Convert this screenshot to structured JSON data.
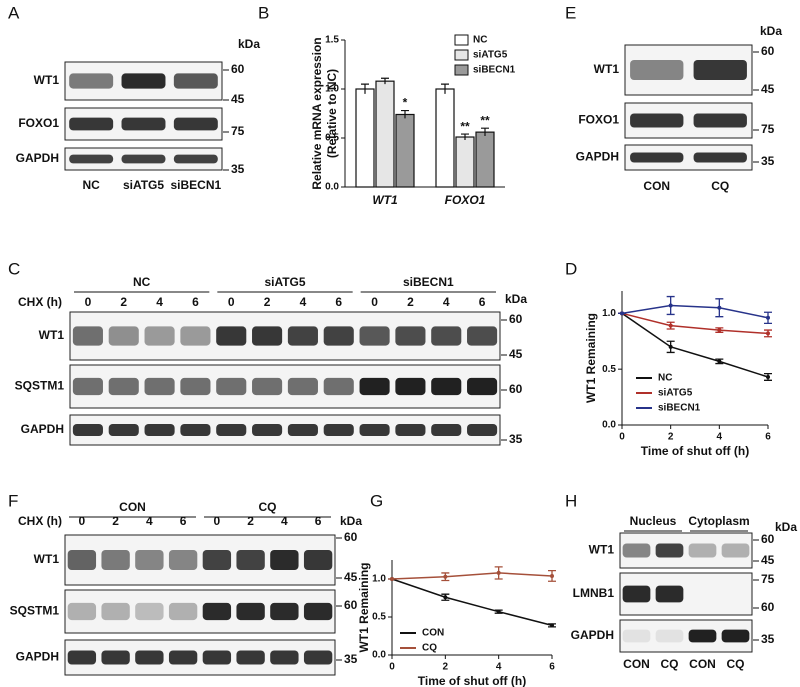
{
  "chart_data": [
    {
      "type": "bar",
      "letter": "B",
      "y_label": [
        "Relative mRNA expression",
        "(Relative to NC)"
      ],
      "categories": [
        "WT1",
        "FOXO1"
      ],
      "series": [
        {
          "name": "NC",
          "color": "#ffffff",
          "values": [
            1.0,
            1.0
          ],
          "errors": [
            0.05,
            0.05
          ]
        },
        {
          "name": "siATG5",
          "color": "#e6e6e6",
          "values": [
            1.08,
            0.51
          ],
          "errors": [
            0.03,
            0.03
          ]
        },
        {
          "name": "siBECN1",
          "color": "#9a9a9a",
          "values": [
            0.74,
            0.56
          ],
          "errors": [
            0.04,
            0.04
          ]
        }
      ],
      "annotations": [
        "*",
        "**",
        "**"
      ],
      "ylim": [
        0,
        1.5
      ],
      "yticks": [
        {
          "value": 0,
          "label": "0.0"
        },
        {
          "value": 0.5,
          "label": "0.5"
        },
        {
          "value": 1,
          "label": "1.0"
        },
        {
          "value": 1.5,
          "label": "1.5"
        }
      ]
    },
    {
      "type": "line",
      "letter": "D",
      "y_label": "WT1 Remaining",
      "x_label": "Time of shut off (h)",
      "x": [
        0,
        2,
        4,
        6
      ],
      "series": [
        {
          "name": "NC",
          "color": "#111111",
          "values": [
            1.0,
            0.7,
            0.57,
            0.43
          ],
          "errors": [
            0,
            0.05,
            0.02,
            0.03
          ]
        },
        {
          "name": "siATG5",
          "color": "#b0302a",
          "values": [
            1.0,
            0.89,
            0.85,
            0.82
          ],
          "errors": [
            0,
            0.03,
            0.02,
            0.03
          ]
        },
        {
          "name": "siBECN1",
          "color": "#27338a",
          "values": [
            1.0,
            1.07,
            1.05,
            0.96
          ],
          "errors": [
            0,
            0.08,
            0.08,
            0.05
          ]
        }
      ],
      "xlim": [
        0,
        6
      ],
      "xticks": [
        0,
        2,
        4,
        6
      ],
      "ylim": [
        0,
        1.2
      ],
      "yticks": [
        {
          "value": 0,
          "label": "0.0"
        },
        {
          "value": 0.5,
          "label": "0.5"
        },
        {
          "value": 1,
          "label": "1.0"
        }
      ]
    },
    {
      "type": "line",
      "letter": "G",
      "y_label": "WT1 Remaining",
      "x_label": "Time of shut off (h)",
      "x": [
        0,
        2,
        4,
        6
      ],
      "series": [
        {
          "name": "CON",
          "color": "#111111",
          "values": [
            1.0,
            0.76,
            0.57,
            0.39
          ],
          "errors": [
            0,
            0.04,
            0.02,
            0.02
          ]
        },
        {
          "name": "CQ",
          "color": "#a5503a",
          "values": [
            1.0,
            1.03,
            1.08,
            1.04
          ],
          "errors": [
            0,
            0.05,
            0.08,
            0.07
          ]
        }
      ],
      "xlim": [
        0,
        6
      ],
      "xticks": [
        0,
        2,
        4,
        6
      ],
      "ylim": [
        0,
        1.25
      ],
      "yticks": [
        {
          "value": 0,
          "label": "0.0"
        },
        {
          "value": 0.5,
          "label": "0.5"
        },
        {
          "value": 1,
          "label": "1.0"
        }
      ]
    }
  ],
  "blots": {
    "A": {
      "letter": "A",
      "unit": "kDa",
      "lanes": [
        "NC",
        "siATG5",
        "siBECN1"
      ],
      "rows": [
        {
          "label": "WT1",
          "markers": [
            "60",
            "45"
          ]
        },
        {
          "label": "FOXO1",
          "markers": [
            "75"
          ]
        },
        {
          "label": "GAPDH",
          "markers": [
            "35"
          ]
        }
      ]
    },
    "C": {
      "letter": "C",
      "unit": "kDa",
      "treatment": "CHX (h)",
      "groups": [
        "NC",
        "siATG5",
        "siBECN1"
      ],
      "lanes": [
        "0",
        "2",
        "4",
        "6",
        "0",
        "2",
        "4",
        "6",
        "0",
        "2",
        "4",
        "6"
      ],
      "rows": [
        {
          "label": "WT1",
          "markers": [
            "60",
            "45"
          ]
        },
        {
          "label": "SQSTM1",
          "markers": [
            "60"
          ]
        },
        {
          "label": "GAPDH",
          "markers": [
            "35"
          ]
        }
      ]
    },
    "E": {
      "letter": "E",
      "unit": "kDa",
      "lanes": [
        "CON",
        "CQ"
      ],
      "rows": [
        {
          "label": "WT1",
          "markers": [
            "60",
            "45"
          ]
        },
        {
          "label": "FOXO1",
          "markers": [
            "75"
          ]
        },
        {
          "label": "GAPDH",
          "markers": [
            "35"
          ]
        }
      ]
    },
    "F": {
      "letter": "F",
      "unit": "kDa",
      "treatment": "CHX (h)",
      "groups": [
        "CON",
        "CQ"
      ],
      "lanes": [
        "0",
        "2",
        "4",
        "6",
        "0",
        "2",
        "4",
        "6"
      ],
      "rows": [
        {
          "label": "WT1",
          "markers": [
            "60",
            "45"
          ]
        },
        {
          "label": "SQSTM1",
          "markers": [
            "60"
          ]
        },
        {
          "label": "GAPDH",
          "markers": [
            "35"
          ]
        }
      ]
    },
    "H": {
      "letter": "H",
      "unit": "kDa",
      "groups": [
        "Nucleus",
        "Cytoplasm"
      ],
      "lanes": [
        "CON",
        "CQ",
        "CON",
        "CQ"
      ],
      "rows": [
        {
          "label": "WT1",
          "markers": [
            "60",
            "45"
          ]
        },
        {
          "label": "LMNB1",
          "markers": [
            "75",
            "60"
          ]
        },
        {
          "label": "GAPDH",
          "markers": [
            "35"
          ]
        }
      ]
    }
  }
}
